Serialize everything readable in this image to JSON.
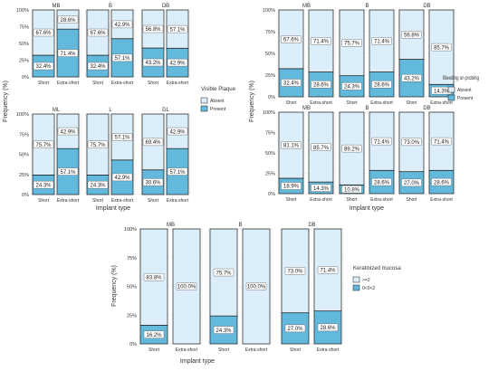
{
  "colors": {
    "absent": "#dceefa",
    "present": "#62b9dc",
    "outline": "#1a1a1a",
    "grid": "#e4e4e4",
    "text": "#333333"
  },
  "chart_data": [
    {
      "type": "bar",
      "subtype": "stacked-100",
      "title": "",
      "xlabel": "Implant type",
      "ylabel": "Frequency (%)",
      "ylim": [
        0,
        100
      ],
      "yticks": [
        "0%",
        "25%",
        "50%",
        "75%",
        "100%"
      ],
      "legend": {
        "title": "Visible Plaque",
        "entries": [
          "Absent",
          "Present"
        ],
        "placement": "right"
      },
      "panels": [
        {
          "facet": "MB",
          "categories": [
            "Short",
            "Extra-short"
          ],
          "series": [
            {
              "name": "Present",
              "values": [
                32.4,
                71.4
              ]
            },
            {
              "name": "Absent",
              "values": [
                67.6,
                28.6
              ]
            }
          ]
        },
        {
          "facet": "B",
          "categories": [
            "Short",
            "Extra-short"
          ],
          "series": [
            {
              "name": "Present",
              "values": [
                32.4,
                57.1
              ]
            },
            {
              "name": "Absent",
              "values": [
                67.6,
                42.9
              ]
            }
          ]
        },
        {
          "facet": "DB",
          "categories": [
            "Short",
            "Extra-short"
          ],
          "series": [
            {
              "name": "Present",
              "values": [
                43.2,
                42.9
              ]
            },
            {
              "name": "Absent",
              "values": [
                56.8,
                57.1
              ]
            }
          ]
        },
        {
          "facet": "ML",
          "categories": [
            "Short",
            "Extra-short"
          ],
          "series": [
            {
              "name": "Present",
              "values": [
                24.3,
                57.1
              ]
            },
            {
              "name": "Absent",
              "values": [
                75.7,
                42.9
              ]
            }
          ]
        },
        {
          "facet": "L",
          "categories": [
            "Short",
            "Extra-short"
          ],
          "series": [
            {
              "name": "Present",
              "values": [
                24.3,
                42.9
              ]
            },
            {
              "name": "Absent",
              "values": [
                75.7,
                57.1
              ]
            }
          ]
        },
        {
          "facet": "DL",
          "categories": [
            "Short",
            "Extra-short"
          ],
          "series": [
            {
              "name": "Present",
              "values": [
                30.6,
                57.1
              ]
            },
            {
              "name": "Absent",
              "values": [
                69.4,
                42.9
              ]
            }
          ]
        }
      ]
    },
    {
      "type": "bar",
      "subtype": "stacked-100",
      "title": "",
      "xlabel": "Implant type",
      "ylabel": "Frequency (%)",
      "ylim": [
        0,
        100
      ],
      "yticks": [
        "0%",
        "25%",
        "50%",
        "75%",
        "100%"
      ],
      "legend": {
        "title": "Bleeding on probing",
        "entries": [
          "Absent",
          "Present"
        ],
        "placement": "right"
      },
      "panels": [
        {
          "facet": "MB",
          "categories": [
            "Short",
            "Extra-short"
          ],
          "series": [
            {
              "name": "Present",
              "values": [
                32.4,
                28.6
              ]
            },
            {
              "name": "Absent",
              "values": [
                67.6,
                71.4
              ]
            }
          ]
        },
        {
          "facet": "B",
          "categories": [
            "Short",
            "Extra-short"
          ],
          "series": [
            {
              "name": "Present",
              "values": [
                24.3,
                28.6
              ]
            },
            {
              "name": "Absent",
              "values": [
                75.7,
                71.4
              ]
            }
          ]
        },
        {
          "facet": "DB",
          "categories": [
            "Short",
            "Extra-short"
          ],
          "series": [
            {
              "name": "Present",
              "values": [
                43.2,
                14.3
              ]
            },
            {
              "name": "Absent",
              "values": [
                56.8,
                85.7
              ]
            }
          ]
        },
        {
          "facet": "MB",
          "categories": [
            "Short",
            "Extra-short"
          ],
          "series": [
            {
              "name": "Present",
              "values": [
                18.9,
                14.3
              ]
            },
            {
              "name": "Absent",
              "values": [
                81.1,
                85.7
              ]
            }
          ]
        },
        {
          "facet": "B",
          "categories": [
            "Short",
            "Extra-short"
          ],
          "series": [
            {
              "name": "Present",
              "values": [
                10.8,
                28.6
              ]
            },
            {
              "name": "Absent",
              "values": [
                89.2,
                71.4
              ]
            }
          ]
        },
        {
          "facet": "DB",
          "categories": [
            "Short",
            "Extra-short"
          ],
          "series": [
            {
              "name": "Present",
              "values": [
                27.0,
                28.6
              ]
            },
            {
              "name": "Absent",
              "values": [
                73.0,
                71.4
              ]
            }
          ]
        }
      ]
    },
    {
      "type": "bar",
      "subtype": "stacked-100",
      "title": "",
      "xlabel": "Implant type",
      "ylabel": "Frequency (%)",
      "ylim": [
        0,
        100
      ],
      "yticks": [
        "0%",
        "25%",
        "50%",
        "75%",
        "100%"
      ],
      "legend": {
        "title": "Keratinized mucosa",
        "entries": [
          ">=2",
          "0<0<2"
        ],
        "placement": "right"
      },
      "panels": [
        {
          "facet": "MB",
          "categories": [
            "Short",
            "Extra-short"
          ],
          "series": [
            {
              "name": "0<0<2",
              "values": [
                16.2,
                0
              ]
            },
            {
              "name": ">=2",
              "values": [
                83.8,
                100.0
              ]
            }
          ]
        },
        {
          "facet": "B",
          "categories": [
            "Short",
            "Extra-short"
          ],
          "series": [
            {
              "name": "0<0<2",
              "values": [
                24.3,
                0
              ]
            },
            {
              "name": ">=2",
              "values": [
                75.7,
                100.0
              ]
            }
          ]
        },
        {
          "facet": "DB",
          "categories": [
            "Short",
            "Extra-short"
          ],
          "series": [
            {
              "name": "0<0<2",
              "values": [
                27.0,
                28.6
              ]
            },
            {
              "name": ">=2",
              "values": [
                73.0,
                71.4
              ]
            }
          ]
        }
      ]
    }
  ]
}
